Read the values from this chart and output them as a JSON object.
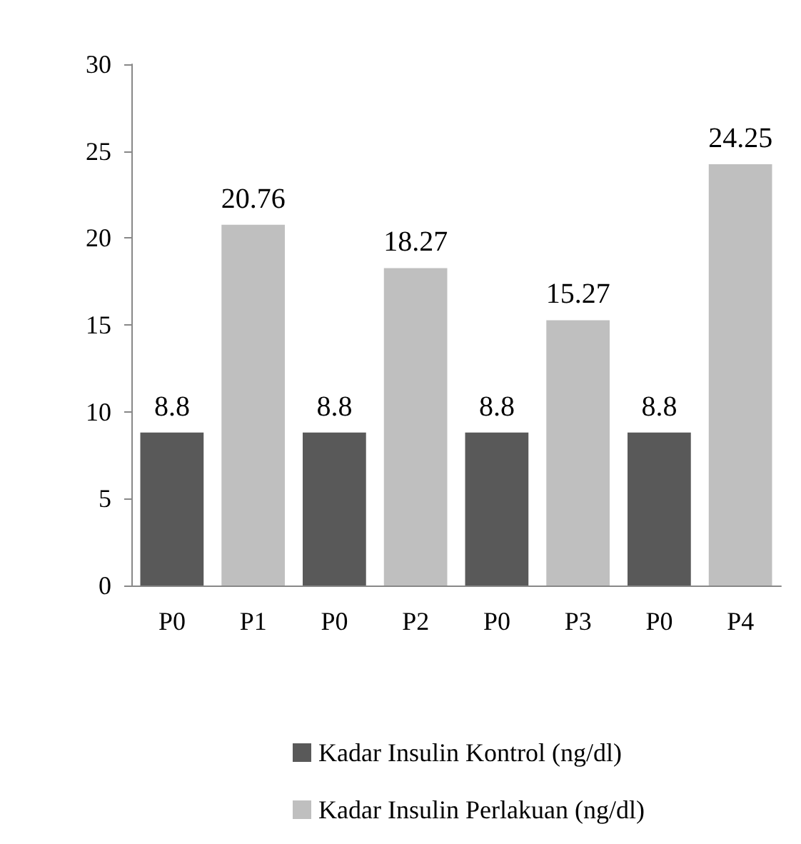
{
  "chart_data": {
    "type": "bar",
    "categories": [
      "P0",
      "P1",
      "P0",
      "P2",
      "P0",
      "P3",
      "P0",
      "P4"
    ],
    "series": [
      {
        "name": "Kadar Insulin Kontrol (ng/dl)",
        "color": "#595959",
        "values": [
          8.8,
          null,
          8.8,
          null,
          8.8,
          null,
          8.8,
          null
        ]
      },
      {
        "name": "Kadar Insulin Perlakuan (ng/dl)",
        "color": "#bfbfbf",
        "values": [
          null,
          20.76,
          null,
          18.27,
          null,
          15.27,
          null,
          24.25
        ]
      }
    ],
    "ylim": [
      0,
      30
    ],
    "yticks": [
      0,
      5,
      10,
      15,
      20,
      25,
      30
    ],
    "grid": false,
    "legend": "bottom",
    "data_labels": true
  }
}
